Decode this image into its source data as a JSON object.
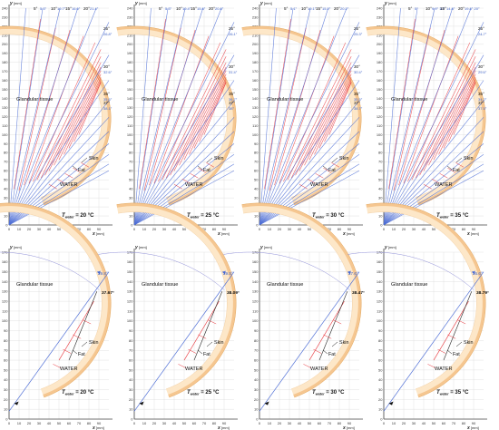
{
  "colors": {
    "skin": "#f5c690",
    "fat": "#fde7c8",
    "axis": "#444444",
    "grid": "#e1e1e1",
    "red": "#e8343a",
    "blue": "#4f6fd6",
    "label_blue": "#3f63c9"
  },
  "labels": {
    "glandular": "Glandular tissue",
    "skin": "Skin",
    "fat": "Fat",
    "water": "WATER",
    "t_sym": "T",
    "t_sub": "water",
    "y_axis": "y",
    "x_axis": "x",
    "unit": "[mm]"
  },
  "chart_data": {
    "type": "diagram",
    "top_panels": [
      {
        "name": "panel-t20",
        "temperature": "= 20 °C",
        "top_labels": [
          {
            "deg": "5°",
            "blue": "5.3°"
          },
          {
            "deg": "10°",
            "blue": "10.7°"
          },
          {
            "deg": "15°",
            "blue": "16.0°"
          },
          {
            "deg": "20°",
            "blue": "21.4°"
          }
        ],
        "right_labels": [
          {
            "deg": "25°",
            "blue": "26.8°"
          },
          {
            "deg": "30°",
            "blue": "32.6°"
          },
          {
            "deg": "35°",
            "blue": "35.6°"
          },
          {
            "deg": "37°",
            "blue": "38.1°"
          }
        ]
      },
      {
        "name": "panel-t25",
        "temperature": "= 25 °C",
        "top_labels": [
          {
            "deg": "5°",
            "blue": "5.3°"
          },
          {
            "deg": "10°",
            "blue": "10.4°"
          },
          {
            "deg": "15°",
            "blue": "15.8°"
          },
          {
            "deg": "20°",
            "blue": "20.8°"
          }
        ],
        "right_labels": [
          {
            "deg": "25°",
            "blue": "26.1°"
          },
          {
            "deg": "30°",
            "blue": "31.4°"
          },
          {
            "deg": "35°",
            "blue": "36.7°"
          },
          {
            "deg": "37°",
            "blue": "38°"
          }
        ]
      },
      {
        "name": "panel-t30",
        "temperature": "= 30 °C",
        "top_labels": [
          {
            "deg": "5°",
            "blue": "5.1°"
          },
          {
            "deg": "10°",
            "blue": "10.1°"
          },
          {
            "deg": "15°",
            "blue": "15.2°"
          },
          {
            "deg": "20°",
            "blue": "20.2°"
          }
        ],
        "right_labels": [
          {
            "deg": "25°",
            "blue": "25.3°"
          },
          {
            "deg": "30°",
            "blue": "30.4°"
          },
          {
            "deg": "35°",
            "blue": "35.5°"
          },
          {
            "deg": "37°",
            "blue": "38.7°"
          }
        ]
      },
      {
        "name": "panel-t35",
        "temperature": "= 35 °C",
        "top_labels": [
          {
            "deg": "5°",
            "blue": "5°"
          },
          {
            "deg": "10°",
            "blue": "9.9° 10°"
          },
          {
            "deg": "15°",
            "blue": "14.8°"
          },
          {
            "deg": "20°",
            "blue": "19.8° 20°"
          }
        ],
        "right_labels": [
          {
            "deg": "25°",
            "blue": "24.7°"
          },
          {
            "deg": "30°",
            "blue": "29.6°"
          },
          {
            "deg": "35°",
            "blue": "34.2°"
          },
          {
            "deg": "37°",
            "blue": "37.5°"
          }
        ]
      }
    ],
    "bottom_panels": [
      {
        "name": "panel-b20",
        "temperature": "= 20 °C",
        "blue_angle": "29.8°",
        "black_angle": "37.67°"
      },
      {
        "name": "panel-b25",
        "temperature": "= 25 °C",
        "blue_angle": "29.5°",
        "black_angle": "38.09°"
      },
      {
        "name": "panel-b30",
        "temperature": "= 30 °C",
        "blue_angle": "27.6°",
        "black_angle": "38.47°"
      },
      {
        "name": "panel-b35",
        "temperature": "= 35 °C",
        "blue_angle": "26.6°",
        "black_angle": "38.79°"
      }
    ],
    "top_axes": {
      "x_ticks": [
        0,
        10,
        20,
        30,
        40,
        50,
        60,
        70,
        80,
        90
      ],
      "y_ticks": [
        0,
        10,
        20,
        30,
        40,
        50,
        60,
        70,
        80,
        90,
        100,
        110,
        120,
        130,
        140,
        150,
        160,
        170,
        180,
        190,
        200,
        210,
        220,
        230,
        240
      ]
    },
    "bottom_axes": {
      "x_ticks": [
        0,
        10,
        20,
        30,
        40,
        50,
        60,
        70,
        80,
        90
      ],
      "y_ticks": [
        0,
        10,
        20,
        30,
        40,
        50,
        60,
        70,
        80,
        90,
        100,
        110,
        120,
        130,
        140,
        150,
        160,
        170
      ]
    }
  }
}
